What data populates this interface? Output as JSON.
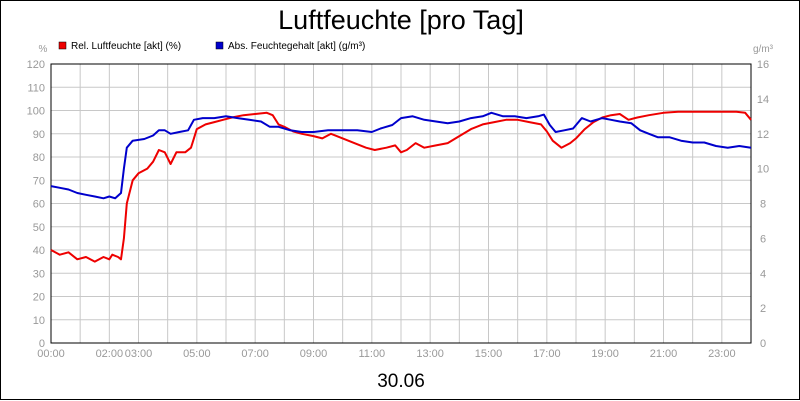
{
  "chart_data": {
    "type": "line",
    "title": "Luftfeuchte [pro Tag]",
    "date_label": "30.06",
    "grid": true,
    "legend_position": "top-left",
    "x_range_hours": [
      0,
      24
    ],
    "x_ticks": [
      {
        "h": 0,
        "label": "00:00"
      },
      {
        "h": 2,
        "label": "02:00"
      },
      {
        "h": 3,
        "label": "03:00"
      },
      {
        "h": 5,
        "label": "05:00"
      },
      {
        "h": 7,
        "label": "07:00"
      },
      {
        "h": 9,
        "label": "09:00"
      },
      {
        "h": 11,
        "label": "11:00"
      },
      {
        "h": 13,
        "label": "13:00"
      },
      {
        "h": 15,
        "label": "15:00"
      },
      {
        "h": 17,
        "label": "17:00"
      },
      {
        "h": 19,
        "label": "19:00"
      },
      {
        "h": 21,
        "label": "21:00"
      },
      {
        "h": 23,
        "label": "23:00"
      }
    ],
    "y_left": {
      "unit": "%",
      "min": 0,
      "max": 120,
      "step": 10
    },
    "y_right": {
      "unit": "g/m³",
      "min": 0,
      "max": 16,
      "step": 2
    },
    "series": [
      {
        "name": "Rel. Luftfeuchte [akt] (%)",
        "axis": "left",
        "color": "#ee0000",
        "points": [
          [
            0,
            40
          ],
          [
            0.3,
            38
          ],
          [
            0.6,
            39
          ],
          [
            0.9,
            36
          ],
          [
            1.2,
            37
          ],
          [
            1.5,
            35
          ],
          [
            1.8,
            37
          ],
          [
            2.0,
            36
          ],
          [
            2.1,
            38
          ],
          [
            2.3,
            37
          ],
          [
            2.4,
            36
          ],
          [
            2.5,
            45
          ],
          [
            2.6,
            60
          ],
          [
            2.8,
            70
          ],
          [
            3.0,
            73
          ],
          [
            3.3,
            75
          ],
          [
            3.5,
            78
          ],
          [
            3.7,
            83
          ],
          [
            3.9,
            82
          ],
          [
            4.1,
            77
          ],
          [
            4.3,
            82
          ],
          [
            4.6,
            82
          ],
          [
            4.8,
            84
          ],
          [
            4.9,
            88
          ],
          [
            5.0,
            92
          ],
          [
            5.3,
            94
          ],
          [
            5.6,
            95
          ],
          [
            5.9,
            96
          ],
          [
            6.2,
            97
          ],
          [
            6.6,
            98
          ],
          [
            7.0,
            98.5
          ],
          [
            7.4,
            99
          ],
          [
            7.6,
            98
          ],
          [
            7.8,
            94
          ],
          [
            8.0,
            93
          ],
          [
            8.3,
            91
          ],
          [
            8.6,
            90
          ],
          [
            9.0,
            89
          ],
          [
            9.3,
            88
          ],
          [
            9.6,
            90
          ],
          [
            10.0,
            88
          ],
          [
            10.4,
            86
          ],
          [
            10.8,
            84
          ],
          [
            11.1,
            83
          ],
          [
            11.5,
            84
          ],
          [
            11.8,
            85
          ],
          [
            12.0,
            82
          ],
          [
            12.2,
            83
          ],
          [
            12.5,
            86
          ],
          [
            12.8,
            84
          ],
          [
            13.2,
            85
          ],
          [
            13.6,
            86
          ],
          [
            14.0,
            89
          ],
          [
            14.4,
            92
          ],
          [
            14.8,
            94
          ],
          [
            15.2,
            95
          ],
          [
            15.6,
            96
          ],
          [
            16.0,
            96
          ],
          [
            16.4,
            95
          ],
          [
            16.8,
            94
          ],
          [
            17.0,
            91
          ],
          [
            17.2,
            87
          ],
          [
            17.5,
            84
          ],
          [
            17.8,
            86
          ],
          [
            18.0,
            88
          ],
          [
            18.3,
            92
          ],
          [
            18.6,
            95
          ],
          [
            18.9,
            97
          ],
          [
            19.2,
            98
          ],
          [
            19.5,
            98.5
          ],
          [
            19.8,
            96
          ],
          [
            20.1,
            97
          ],
          [
            20.5,
            98
          ],
          [
            21.0,
            99
          ],
          [
            21.5,
            99.5
          ],
          [
            22.0,
            99.5
          ],
          [
            22.5,
            99.5
          ],
          [
            23.0,
            99.5
          ],
          [
            23.5,
            99.5
          ],
          [
            23.8,
            99
          ],
          [
            24.0,
            96
          ]
        ]
      },
      {
        "name": "Abs. Feuchtegehalt [akt] (g/m³)",
        "axis": "right",
        "color": "#0000cc",
        "points": [
          [
            0,
            9.0
          ],
          [
            0.3,
            8.9
          ],
          [
            0.6,
            8.8
          ],
          [
            0.9,
            8.6
          ],
          [
            1.2,
            8.5
          ],
          [
            1.5,
            8.4
          ],
          [
            1.8,
            8.3
          ],
          [
            2.0,
            8.4
          ],
          [
            2.2,
            8.3
          ],
          [
            2.4,
            8.6
          ],
          [
            2.5,
            10.0
          ],
          [
            2.6,
            11.2
          ],
          [
            2.8,
            11.6
          ],
          [
            3.2,
            11.7
          ],
          [
            3.5,
            11.9
          ],
          [
            3.7,
            12.2
          ],
          [
            3.9,
            12.2
          ],
          [
            4.1,
            12.0
          ],
          [
            4.4,
            12.1
          ],
          [
            4.7,
            12.2
          ],
          [
            4.9,
            12.8
          ],
          [
            5.2,
            12.9
          ],
          [
            5.6,
            12.9
          ],
          [
            6.0,
            13.0
          ],
          [
            6.4,
            12.9
          ],
          [
            6.8,
            12.8
          ],
          [
            7.2,
            12.7
          ],
          [
            7.5,
            12.4
          ],
          [
            7.8,
            12.4
          ],
          [
            8.2,
            12.2
          ],
          [
            8.6,
            12.1
          ],
          [
            9.0,
            12.1
          ],
          [
            9.5,
            12.2
          ],
          [
            10.0,
            12.2
          ],
          [
            10.5,
            12.2
          ],
          [
            11.0,
            12.1
          ],
          [
            11.3,
            12.3
          ],
          [
            11.7,
            12.5
          ],
          [
            12.0,
            12.9
          ],
          [
            12.4,
            13.0
          ],
          [
            12.8,
            12.8
          ],
          [
            13.2,
            12.7
          ],
          [
            13.6,
            12.6
          ],
          [
            14.0,
            12.7
          ],
          [
            14.4,
            12.9
          ],
          [
            14.8,
            13.0
          ],
          [
            15.1,
            13.2
          ],
          [
            15.5,
            13.0
          ],
          [
            15.9,
            13.0
          ],
          [
            16.3,
            12.9
          ],
          [
            16.7,
            13.0
          ],
          [
            16.9,
            13.1
          ],
          [
            17.1,
            12.5
          ],
          [
            17.3,
            12.1
          ],
          [
            17.6,
            12.2
          ],
          [
            17.9,
            12.3
          ],
          [
            18.2,
            12.9
          ],
          [
            18.5,
            12.7
          ],
          [
            18.9,
            12.9
          ],
          [
            19.2,
            12.8
          ],
          [
            19.5,
            12.7
          ],
          [
            19.9,
            12.6
          ],
          [
            20.2,
            12.2
          ],
          [
            20.5,
            12.0
          ],
          [
            20.8,
            11.8
          ],
          [
            21.2,
            11.8
          ],
          [
            21.6,
            11.6
          ],
          [
            22.0,
            11.5
          ],
          [
            22.4,
            11.5
          ],
          [
            22.8,
            11.3
          ],
          [
            23.2,
            11.2
          ],
          [
            23.6,
            11.3
          ],
          [
            24.0,
            11.2
          ]
        ]
      }
    ]
  }
}
